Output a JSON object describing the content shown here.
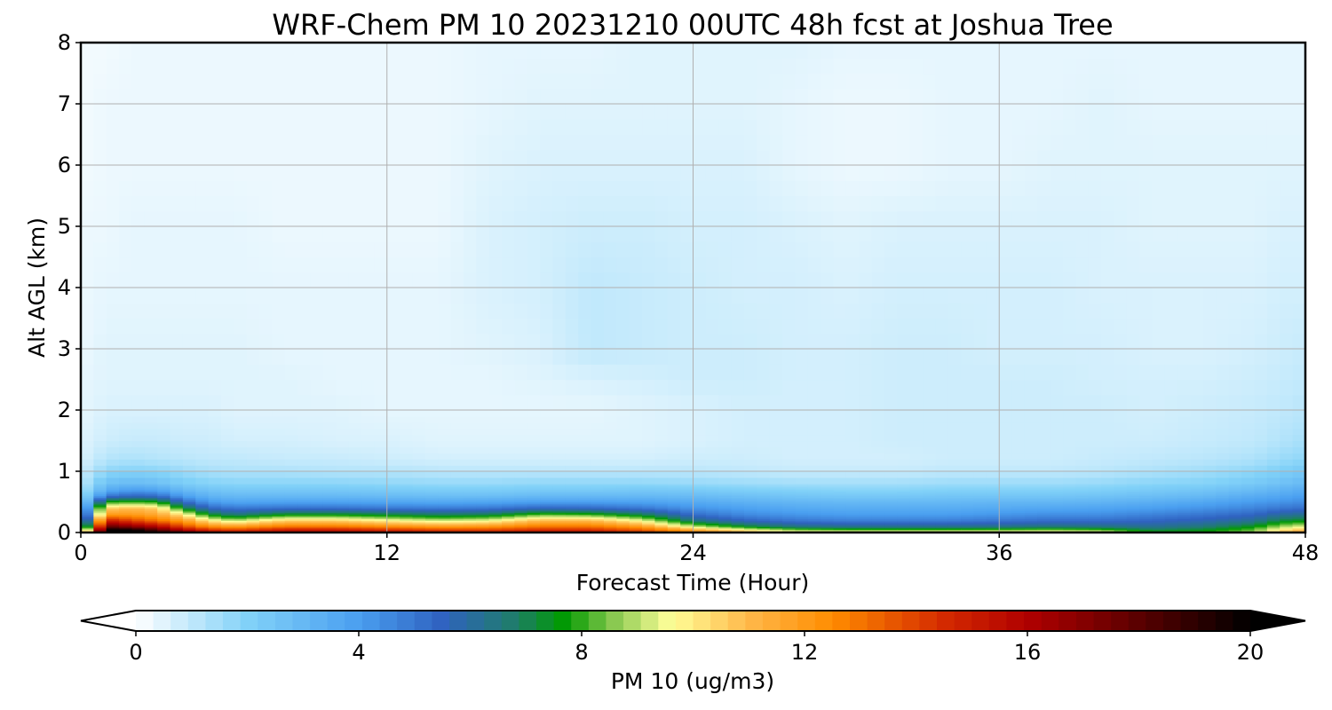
{
  "chart_data": {
    "type": "heatmap",
    "title": "WRF-Chem PM 10  20231210 00UTC 48h fcst at Joshua Tree",
    "xlabel": "Forecast Time (Hour)",
    "ylabel": "Alt AGL (km)",
    "x_ticks": [
      "0",
      "12",
      "24",
      "36",
      "48"
    ],
    "y_ticks": [
      "0",
      "1",
      "2",
      "3",
      "4",
      "5",
      "6",
      "7",
      "8"
    ],
    "xlim": [
      0,
      48
    ],
    "ylim": [
      0,
      8
    ],
    "grid": true,
    "colorbar": {
      "label": "PM 10  (ug/m3)",
      "ticks": [
        "0",
        "4",
        "8",
        "12",
        "16",
        "20"
      ],
      "range": [
        0,
        20
      ],
      "extend": "both",
      "stops": [
        {
          "value": 0,
          "color": "#ffffff"
        },
        {
          "value": 2,
          "color": "#82d2f8"
        },
        {
          "value": 4,
          "color": "#4a9ff0"
        },
        {
          "value": 5.5,
          "color": "#2f62c0"
        },
        {
          "value": 6.8,
          "color": "#1f7d6a"
        },
        {
          "value": 7.7,
          "color": "#009a00"
        },
        {
          "value": 8.5,
          "color": "#7fc44a"
        },
        {
          "value": 9.6,
          "color": "#ffff99"
        },
        {
          "value": 11,
          "color": "#ffb84a"
        },
        {
          "value": 12.5,
          "color": "#ff8c00"
        },
        {
          "value": 14.5,
          "color": "#d42a00"
        },
        {
          "value": 16,
          "color": "#b00000"
        },
        {
          "value": 18,
          "color": "#5a0000"
        },
        {
          "value": 20,
          "color": "#000000"
        }
      ]
    },
    "data": {
      "x_hours": [
        0,
        1,
        2,
        3,
        4,
        5,
        6,
        8,
        10,
        12,
        14,
        16,
        18,
        20,
        22,
        24,
        26,
        28,
        30,
        32,
        34,
        36,
        38,
        40,
        42,
        44,
        46,
        47,
        48
      ],
      "z_levels": [
        0,
        0.05,
        0.1,
        0.2,
        0.3,
        0.4,
        0.5,
        0.6,
        0.7,
        0.8,
        1.0,
        1.2,
        1.5,
        2.0,
        2.5,
        3.0,
        4.0,
        5.0,
        6.0,
        7.0,
        8.0
      ],
      "pm10_profile_rows_by_hour": [
        [
          8,
          6,
          4,
          3,
          2.5,
          2,
          1.6,
          1.4,
          1.2,
          1,
          0.8,
          0.6,
          0.5,
          0.4,
          0.4,
          0.3,
          0.3,
          0.3,
          0.2,
          0.2,
          0.2
        ],
        [
          21,
          20,
          18,
          15,
          12,
          10.5,
          8,
          5,
          3.5,
          2.8,
          1.8,
          1.2,
          0.8,
          0.6,
          0.5,
          0.5,
          0.4,
          0.3,
          0.3,
          0.3,
          0.2
        ],
        [
          21,
          20,
          17,
          14,
          12,
          11,
          8.2,
          5.5,
          4,
          3,
          2,
          1.3,
          0.9,
          0.6,
          0.5,
          0.5,
          0.4,
          0.4,
          0.3,
          0.3,
          0.3
        ],
        [
          20,
          18,
          16,
          13,
          11.5,
          10.5,
          8,
          5.3,
          3.8,
          2.8,
          1.9,
          1.2,
          0.9,
          0.6,
          0.5,
          0.5,
          0.4,
          0.4,
          0.3,
          0.3,
          0.3
        ],
        [
          18,
          16,
          14,
          12,
          10,
          7.5,
          5.5,
          4,
          3,
          2.3,
          1.6,
          1.1,
          0.8,
          0.6,
          0.5,
          0.5,
          0.4,
          0.4,
          0.3,
          0.3,
          0.3
        ],
        [
          16,
          14.5,
          12.5,
          10,
          7.5,
          5.5,
          4.2,
          3.2,
          2.6,
          2,
          1.4,
          1,
          0.8,
          0.6,
          0.5,
          0.5,
          0.4,
          0.4,
          0.3,
          0.3,
          0.3
        ],
        [
          15.5,
          14,
          12,
          9,
          6.5,
          5,
          3.8,
          3,
          2.4,
          1.9,
          1.3,
          1,
          0.7,
          0.5,
          0.5,
          0.5,
          0.4,
          0.4,
          0.3,
          0.3,
          0.3
        ],
        [
          16,
          15,
          13,
          10.5,
          7.5,
          5.2,
          3.9,
          3,
          2.4,
          1.9,
          1.3,
          0.9,
          0.7,
          0.5,
          0.5,
          0.4,
          0.4,
          0.3,
          0.3,
          0.3,
          0.3
        ],
        [
          16,
          15,
          13,
          10.5,
          7.5,
          5.2,
          3.9,
          3,
          2.4,
          1.9,
          1.2,
          0.9,
          0.6,
          0.5,
          0.4,
          0.4,
          0.4,
          0.3,
          0.3,
          0.3,
          0.3
        ],
        [
          15.5,
          14.5,
          12.5,
          9.8,
          7.2,
          5,
          3.8,
          2.9,
          2.3,
          1.8,
          1.2,
          0.8,
          0.6,
          0.4,
          0.4,
          0.4,
          0.4,
          0.3,
          0.3,
          0.3,
          0.3
        ],
        [
          15,
          14,
          12,
          9.2,
          6.8,
          4.9,
          3.7,
          2.8,
          2.2,
          1.7,
          1.1,
          0.7,
          0.5,
          0.4,
          0.4,
          0.4,
          0.4,
          0.3,
          0.3,
          0.3,
          0.3
        ],
        [
          15,
          14,
          12.2,
          9.5,
          7,
          5,
          3.8,
          2.8,
          2.2,
          1.7,
          1.1,
          0.7,
          0.5,
          0.4,
          0.4,
          0.5,
          0.6,
          0.6,
          0.5,
          0.4,
          0.4
        ],
        [
          15.5,
          14.5,
          13,
          11,
          8.2,
          5.5,
          4,
          3,
          2.3,
          1.8,
          1.1,
          0.7,
          0.5,
          0.4,
          0.5,
          0.6,
          0.7,
          0.7,
          0.6,
          0.5,
          0.4
        ],
        [
          15.5,
          14.5,
          13,
          11,
          8,
          5.4,
          4,
          3,
          2.3,
          1.8,
          1.1,
          0.7,
          0.5,
          0.4,
          0.6,
          1,
          1,
          0.8,
          0.6,
          0.5,
          0.4
        ],
        [
          14.5,
          13.5,
          12,
          9.5,
          7,
          5,
          3.9,
          3,
          2.4,
          1.8,
          1.1,
          0.7,
          0.5,
          0.5,
          0.7,
          0.9,
          0.9,
          0.8,
          0.6,
          0.5,
          0.5
        ],
        [
          12.5,
          11.5,
          9.2,
          6.5,
          5.2,
          4.3,
          3.6,
          2.9,
          2.3,
          1.7,
          1.1,
          0.8,
          0.6,
          0.6,
          0.8,
          0.8,
          0.8,
          0.7,
          0.6,
          0.5,
          0.5
        ],
        [
          11.5,
          9.8,
          7.5,
          5.5,
          4.5,
          3.9,
          3.3,
          2.7,
          2.1,
          1.6,
          1,
          0.8,
          0.7,
          0.7,
          0.8,
          0.8,
          0.7,
          0.7,
          0.6,
          0.5,
          0.5
        ],
        [
          10.5,
          8.5,
          6.5,
          5,
          4.2,
          3.6,
          3.1,
          2.5,
          2,
          1.5,
          0.9,
          0.7,
          0.7,
          0.7,
          0.7,
          0.7,
          0.7,
          0.6,
          0.4,
          0.4,
          0.5
        ],
        [
          10.5,
          8.2,
          6.3,
          4.8,
          4,
          3.5,
          3,
          2.4,
          1.9,
          1.5,
          0.9,
          0.7,
          0.7,
          0.7,
          0.7,
          0.7,
          0.6,
          0.5,
          0.3,
          0.3,
          0.4
        ],
        [
          10.5,
          8.2,
          6.3,
          4.8,
          4,
          3.5,
          3,
          2.4,
          1.9,
          1.5,
          0.9,
          0.7,
          0.8,
          0.8,
          0.8,
          0.8,
          0.7,
          0.6,
          0.3,
          0.3,
          0.4
        ],
        [
          10.5,
          8.2,
          6.3,
          4.8,
          4,
          3.5,
          3,
          2.5,
          2,
          1.6,
          1,
          0.8,
          0.8,
          0.8,
          0.8,
          0.8,
          0.7,
          0.6,
          0.4,
          0.4,
          0.4
        ],
        [
          10.5,
          8.3,
          6.4,
          5,
          4.2,
          3.6,
          3.1,
          2.5,
          2,
          1.6,
          1,
          0.8,
          0.8,
          0.8,
          0.8,
          0.7,
          0.7,
          0.6,
          0.4,
          0.4,
          0.4
        ],
        [
          10.5,
          8.5,
          6.6,
          5.2,
          4.4,
          3.7,
          3.1,
          2.5,
          2,
          1.6,
          1,
          0.8,
          0.8,
          0.8,
          0.8,
          0.7,
          0.7,
          0.6,
          0.5,
          0.4,
          0.4
        ],
        [
          10,
          8.2,
          6.5,
          5.2,
          4.4,
          3.8,
          3.2,
          2.6,
          2.1,
          1.7,
          1.1,
          0.9,
          0.8,
          0.8,
          0.7,
          0.7,
          0.6,
          0.6,
          0.5,
          0.5,
          0.4
        ],
        [
          8.2,
          7,
          6.2,
          5.4,
          4.7,
          4,
          3.4,
          2.8,
          2.3,
          1.9,
          1.3,
          1,
          0.8,
          0.7,
          0.7,
          0.6,
          0.6,
          0.5,
          0.5,
          0.4,
          0.4
        ],
        [
          7.9,
          7.4,
          6.6,
          5.7,
          5,
          4.3,
          3.7,
          3,
          2.5,
          2,
          1.5,
          1.1,
          0.9,
          0.8,
          0.7,
          0.6,
          0.6,
          0.5,
          0.5,
          0.4,
          0.4
        ],
        [
          8.8,
          8.3,
          7.6,
          6.2,
          5.4,
          4.7,
          4.1,
          3.5,
          2.9,
          2.4,
          1.8,
          1.3,
          1,
          0.9,
          0.8,
          0.7,
          0.6,
          0.5,
          0.5,
          0.4,
          0.4
        ],
        [
          10.8,
          10,
          8.8,
          7.2,
          6,
          5,
          4.3,
          3.7,
          3.2,
          2.7,
          2.1,
          1.6,
          1.2,
          1,
          0.9,
          0.8,
          0.7,
          0.6,
          0.5,
          0.4,
          0.4
        ],
        [
          11.5,
          11,
          9.5,
          7.5,
          6.2,
          5.2,
          4.5,
          4,
          3.5,
          3,
          2.4,
          1.8,
          1.4,
          1.1,
          1,
          0.9,
          0.7,
          0.6,
          0.5,
          0.4,
          0.4
        ]
      ]
    }
  }
}
